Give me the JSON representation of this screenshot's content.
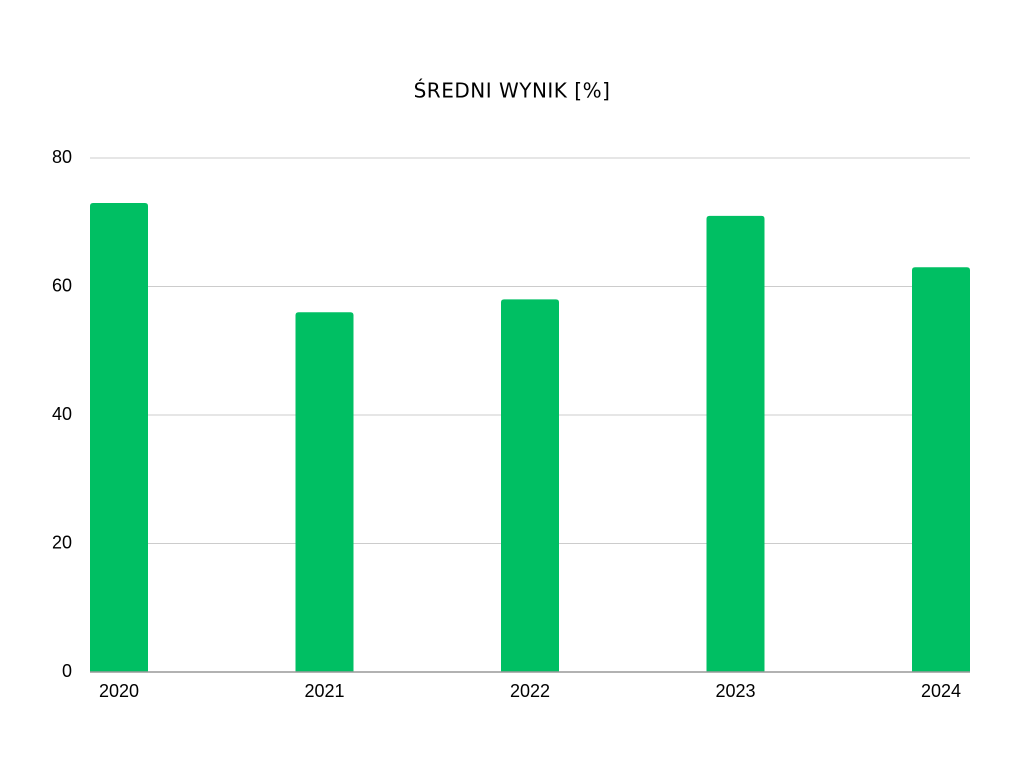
{
  "chart_data": {
    "type": "bar",
    "title": "ŚREDNI WYNIK [%]",
    "categories": [
      "2020",
      "2021",
      "2022",
      "2023",
      "2024"
    ],
    "values": [
      73,
      56,
      58,
      71,
      63
    ],
    "color": "#00bf63",
    "ylim": [
      0,
      80
    ],
    "yticks": [
      0,
      20,
      40,
      60,
      80
    ],
    "grid": true
  }
}
